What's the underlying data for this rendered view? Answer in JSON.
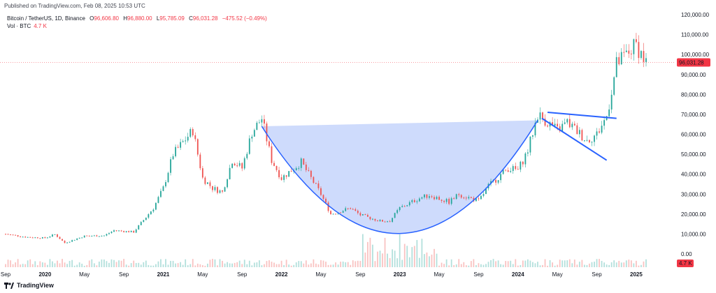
{
  "header": {
    "published": "Published on TradingView.com, Feb 08, 2025 10:53 UTC"
  },
  "legend": {
    "symbol": "Bitcoin / TetherUS, 1D, Binance",
    "o_label": "O",
    "o_value": "96,606.80",
    "h_label": "H",
    "h_value": "96,880.00",
    "l_label": "L",
    "l_value": "95,785.09",
    "c_label": "C",
    "c_value": "96,031.28",
    "change": "−475.52 (−0.49%)",
    "vol_label": "Vol · BTC",
    "vol_value": "4.7 K"
  },
  "footer": {
    "brand": "TradingView"
  },
  "colors": {
    "up": "#26a69a",
    "down": "#ef5350",
    "pattern_line": "#2962ff",
    "pattern_fill": "#b3c8fb",
    "price_line": "#f23645"
  },
  "chart_data": {
    "type": "candlestick",
    "y_axis_ticks": [
      "120,000.00",
      "110,000.00",
      "100,000.00",
      "90,000.00",
      "80,000.00",
      "70,000.00",
      "60,000.00",
      "50,000.00",
      "40,000.00",
      "30,000.00",
      "20,000.00",
      "10,000.00",
      "0.00"
    ],
    "y_range": [
      0,
      120000
    ],
    "x_axis_ticks": [
      "Sep",
      "2020",
      "May",
      "Sep",
      "2021",
      "May",
      "Sep",
      "2022",
      "May",
      "Sep",
      "2023",
      "May",
      "Sep",
      "2024",
      "May",
      "Sep",
      "2025"
    ],
    "last_price_label": "96,031.28",
    "last_volume_label": "4.7 K",
    "price_path": [
      [
        "2019-09",
        10000
      ],
      [
        "2019-11",
        8500
      ],
      [
        "2020-01",
        8000
      ],
      [
        "2020-02",
        9800
      ],
      [
        "2020-03",
        5500
      ],
      [
        "2020-05",
        9000
      ],
      [
        "2020-07",
        9200
      ],
      [
        "2020-08",
        11800
      ],
      [
        "2020-10",
        11000
      ],
      [
        "2020-11",
        17000
      ],
      [
        "2020-12",
        23000
      ],
      [
        "2021-01",
        33000
      ],
      [
        "2021-02",
        50000
      ],
      [
        "2021-04",
        62000
      ],
      [
        "2021-05",
        38000
      ],
      [
        "2021-06",
        33000
      ],
      [
        "2021-07",
        31000
      ],
      [
        "2021-08",
        47000
      ],
      [
        "2021-09",
        43000
      ],
      [
        "2021-10",
        61000
      ],
      [
        "2021-11",
        68000
      ],
      [
        "2021-12",
        47000
      ],
      [
        "2022-01",
        38000
      ],
      [
        "2022-03",
        46000
      ],
      [
        "2022-05",
        30000
      ],
      [
        "2022-06",
        20000
      ],
      [
        "2022-08",
        23000
      ],
      [
        "2022-09",
        19500
      ],
      [
        "2022-11",
        16500
      ],
      [
        "2022-12",
        16600
      ],
      [
        "2023-01",
        23000
      ],
      [
        "2023-03",
        28000
      ],
      [
        "2023-04",
        29500
      ],
      [
        "2023-06",
        26000
      ],
      [
        "2023-07",
        30000
      ],
      [
        "2023-09",
        26500
      ],
      [
        "2023-10",
        34000
      ],
      [
        "2023-12",
        43000
      ],
      [
        "2024-01",
        42000
      ],
      [
        "2024-02",
        52000
      ],
      [
        "2024-03",
        70000
      ],
      [
        "2024-05",
        62000
      ],
      [
        "2024-06",
        66000
      ],
      [
        "2024-08",
        57000
      ],
      [
        "2024-09",
        60000
      ],
      [
        "2024-10",
        69000
      ],
      [
        "2024-11",
        95000
      ],
      [
        "2024-12",
        100000
      ],
      [
        "2025-01",
        105000
      ],
      [
        "2025-02",
        96031
      ]
    ]
  }
}
